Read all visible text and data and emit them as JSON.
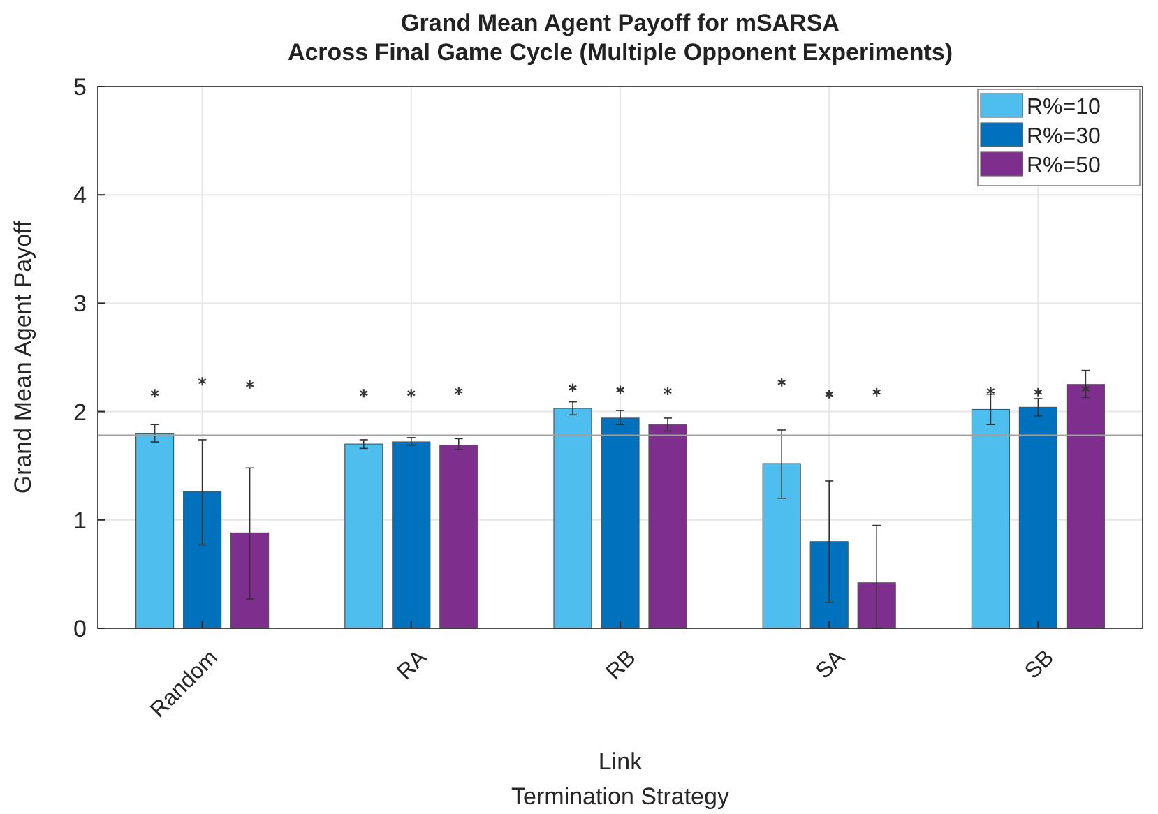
{
  "chart_data": {
    "type": "bar",
    "title": "Grand Mean Agent Payoff for mSARSA\nAcross Final Game Cycle (Multiple Opponent Experiments)",
    "xlabel": "Link\nTermination Strategy",
    "ylabel": "Grand Mean Agent Payoff",
    "categories": [
      "Random",
      "RA",
      "RB",
      "SA",
      "SB"
    ],
    "series": [
      {
        "name": "R%=10",
        "color": "#4dbeee",
        "values": [
          1.8,
          1.7,
          2.03,
          1.52,
          2.02
        ],
        "errors": [
          [
            1.72,
            1.88
          ],
          [
            1.66,
            1.74
          ],
          [
            1.97,
            2.09
          ],
          [
            1.2,
            1.83
          ],
          [
            1.88,
            2.16
          ]
        ]
      },
      {
        "name": "R%=30",
        "color": "#0072bd",
        "values": [
          1.26,
          1.72,
          1.94,
          0.8,
          2.04
        ],
        "errors": [
          [
            0.77,
            1.74
          ],
          [
            1.69,
            1.76
          ],
          [
            1.88,
            2.01
          ],
          [
            0.24,
            1.36
          ],
          [
            1.96,
            2.12
          ]
        ]
      },
      {
        "name": "R%=50",
        "color": "#7e2f8e",
        "values": [
          0.88,
          1.69,
          1.88,
          0.42,
          2.25
        ],
        "errors": [
          [
            0.27,
            1.48
          ],
          [
            1.65,
            1.75
          ],
          [
            1.82,
            1.94
          ],
          [
            0,
            0.95
          ],
          [
            2.13,
            2.38
          ]
        ]
      },
      {
        "type": "scatter",
        "color": "#333333",
        "marker": "cross",
        "values": [
          2.17,
          2.17,
          2.22,
          2.27,
          2.19
        ]
      },
      {
        "type": "scatter",
        "color": "#333333",
        "marker": "cross",
        "values": [
          2.28,
          2.17,
          2.2,
          2.16,
          2.18
        ]
      },
      {
        "type": "scatter",
        "color": "#333333",
        "marker": "cross",
        "values": [
          2.25,
          2.19,
          2.19,
          2.18,
          2.21
        ]
      }
    ],
    "ylim": [
      0,
      5
    ],
    "yticks": [
      0,
      1,
      2,
      3,
      4,
      5
    ],
    "grid": true,
    "legend": "top right",
    "ref_lines": [
      {
        "axis": "y",
        "value": 1.78,
        "color": "#a0a0a0"
      }
    ]
  }
}
